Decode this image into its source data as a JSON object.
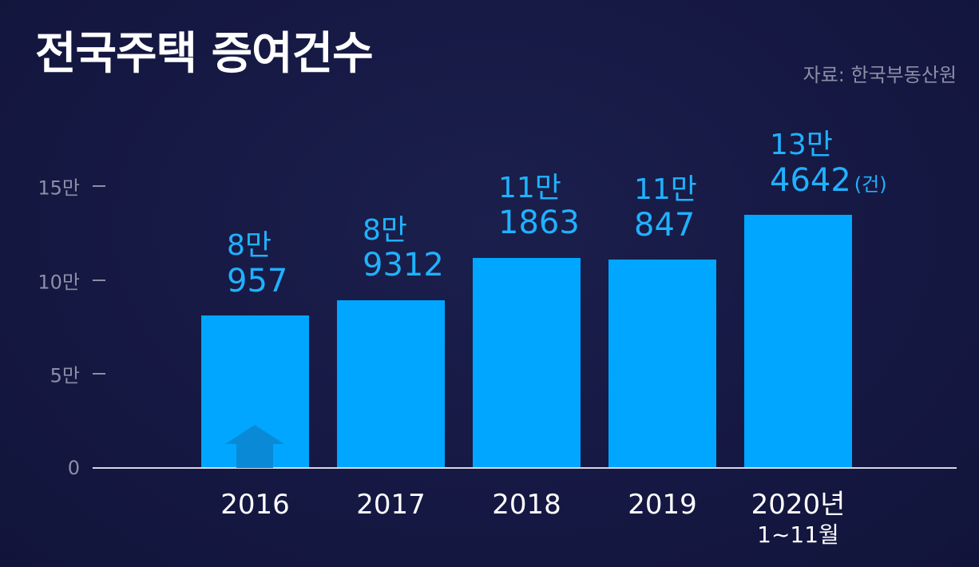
{
  "title": "전국주택 증여건수",
  "source": "자료: 한국부동산원",
  "unit_label": "(건)",
  "colors": {
    "background": "#16193f",
    "bar": "#00a6ff",
    "label": "#1fb2ff",
    "axis_text": "#8c8fa6"
  },
  "chart_data": {
    "type": "bar",
    "title": "전국주택 증여건수",
    "categories": [
      "2016",
      "2017",
      "2018",
      "2019",
      "2020년 1~11월"
    ],
    "category_labels": [
      {
        "main": "2016",
        "sub": ""
      },
      {
        "main": "2017",
        "sub": ""
      },
      {
        "main": "2018",
        "sub": ""
      },
      {
        "main": "2019",
        "sub": ""
      },
      {
        "main": "2020년",
        "sub": "1~11월"
      }
    ],
    "values": [
      80957,
      89312,
      111863,
      110847,
      134642
    ],
    "value_labels": [
      {
        "line1": "8만",
        "line2": "957"
      },
      {
        "line1": "8만",
        "line2": "9312"
      },
      {
        "line1": "11만",
        "line2": "1863"
      },
      {
        "line1": "11만",
        "line2": "847"
      },
      {
        "line1": "13만",
        "line2": "4642"
      }
    ],
    "yticks": [
      {
        "value": 0,
        "label": "0"
      },
      {
        "value": 50000,
        "label": "5만"
      },
      {
        "value": 100000,
        "label": "10만"
      },
      {
        "value": 150000,
        "label": "15만"
      }
    ],
    "ylim": [
      0,
      150000
    ],
    "xlabel": "",
    "ylabel": "",
    "grid": false,
    "legend": "none"
  }
}
